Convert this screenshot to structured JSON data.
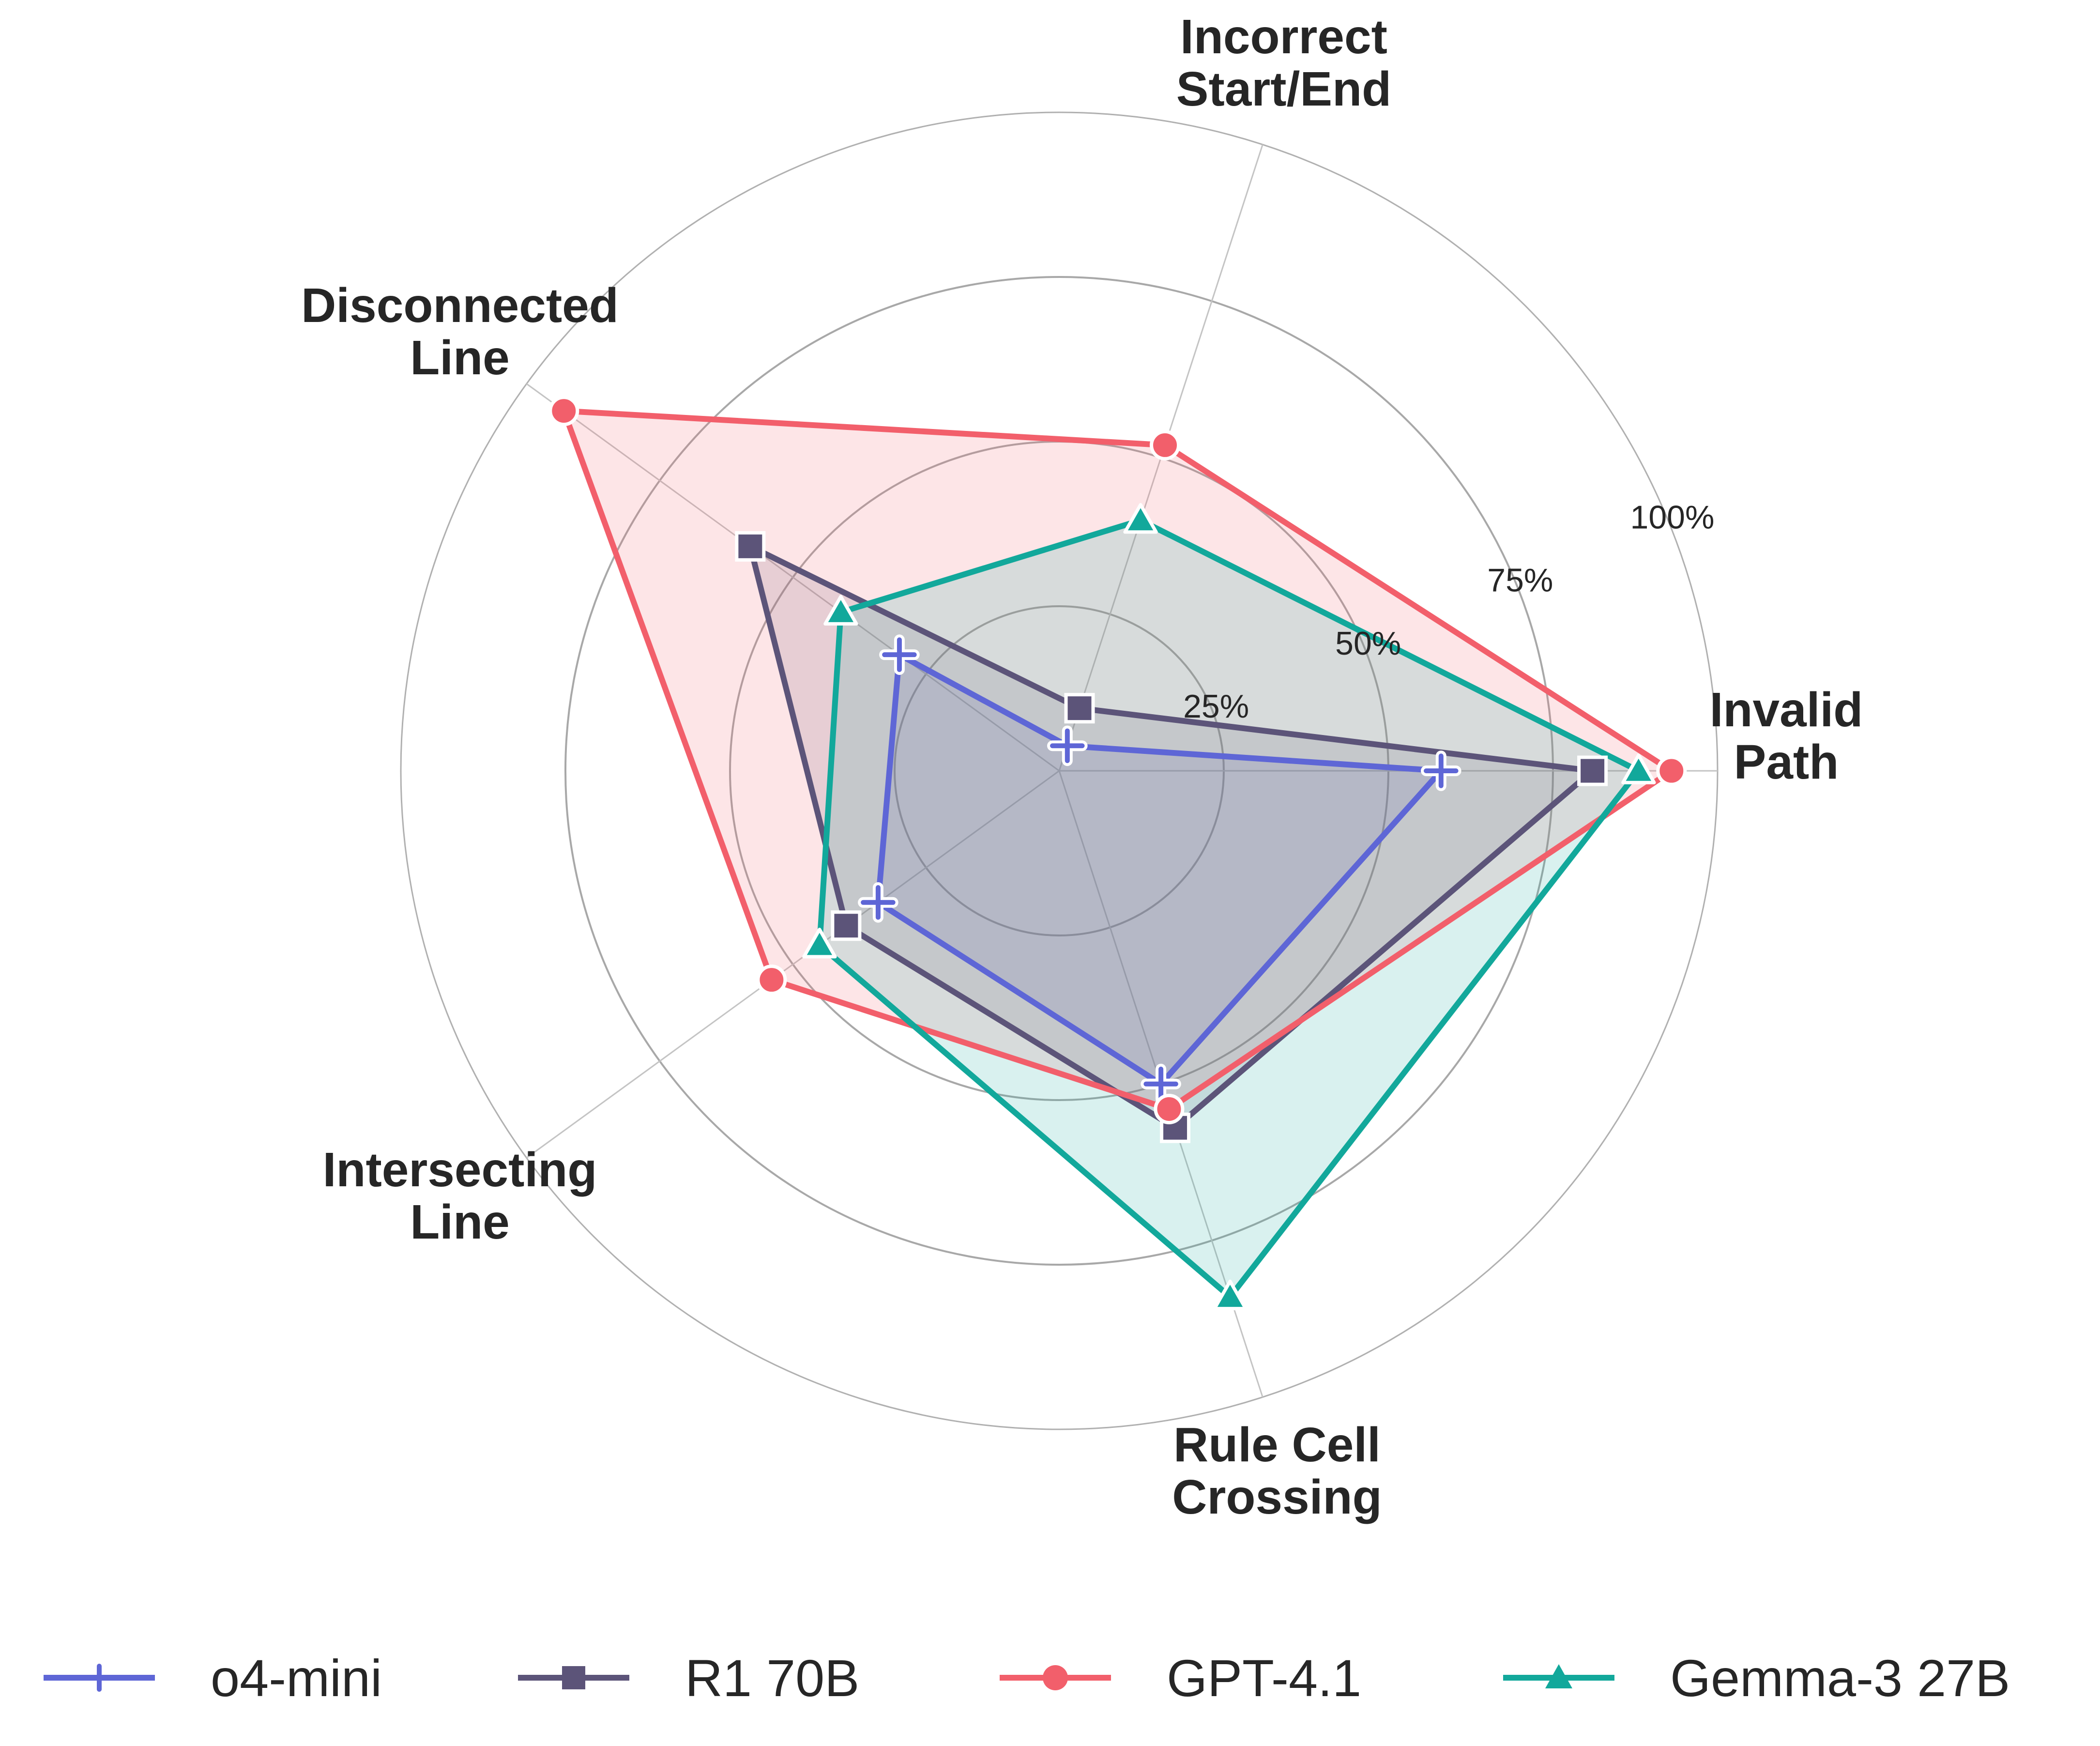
{
  "chart_data": {
    "type": "radar",
    "axes": [
      [
        "Invalid",
        "Path"
      ],
      [
        "Incorrect",
        "Start/End"
      ],
      [
        "Disconnected",
        "Line"
      ],
      [
        "Intersecting",
        "Line"
      ],
      [
        "Rule Cell",
        "Crossing"
      ]
    ],
    "radial_ticks": [
      25,
      50,
      75,
      100
    ],
    "radial_tick_labels": [
      "25%",
      "50%",
      "75%",
      "100%"
    ],
    "rmax": 100,
    "grid": true,
    "legend_position": "bottom",
    "series": [
      {
        "name": "o4-mini",
        "color": "#5e66d6",
        "marker": "plus",
        "values": [
          58,
          4,
          30,
          34,
          50
        ]
      },
      {
        "name": "R1 70B",
        "color": "#5c5479",
        "marker": "square",
        "values": [
          81,
          10,
          58,
          40,
          57
        ]
      },
      {
        "name": "GPT-4.1",
        "color": "#f25f6b",
        "marker": "circle",
        "values": [
          93,
          52,
          93,
          54,
          54
        ]
      },
      {
        "name": "Gemma-3 27B",
        "color": "#12a89b",
        "marker": "triangle",
        "values": [
          88,
          40,
          41,
          45,
          84
        ]
      }
    ]
  }
}
